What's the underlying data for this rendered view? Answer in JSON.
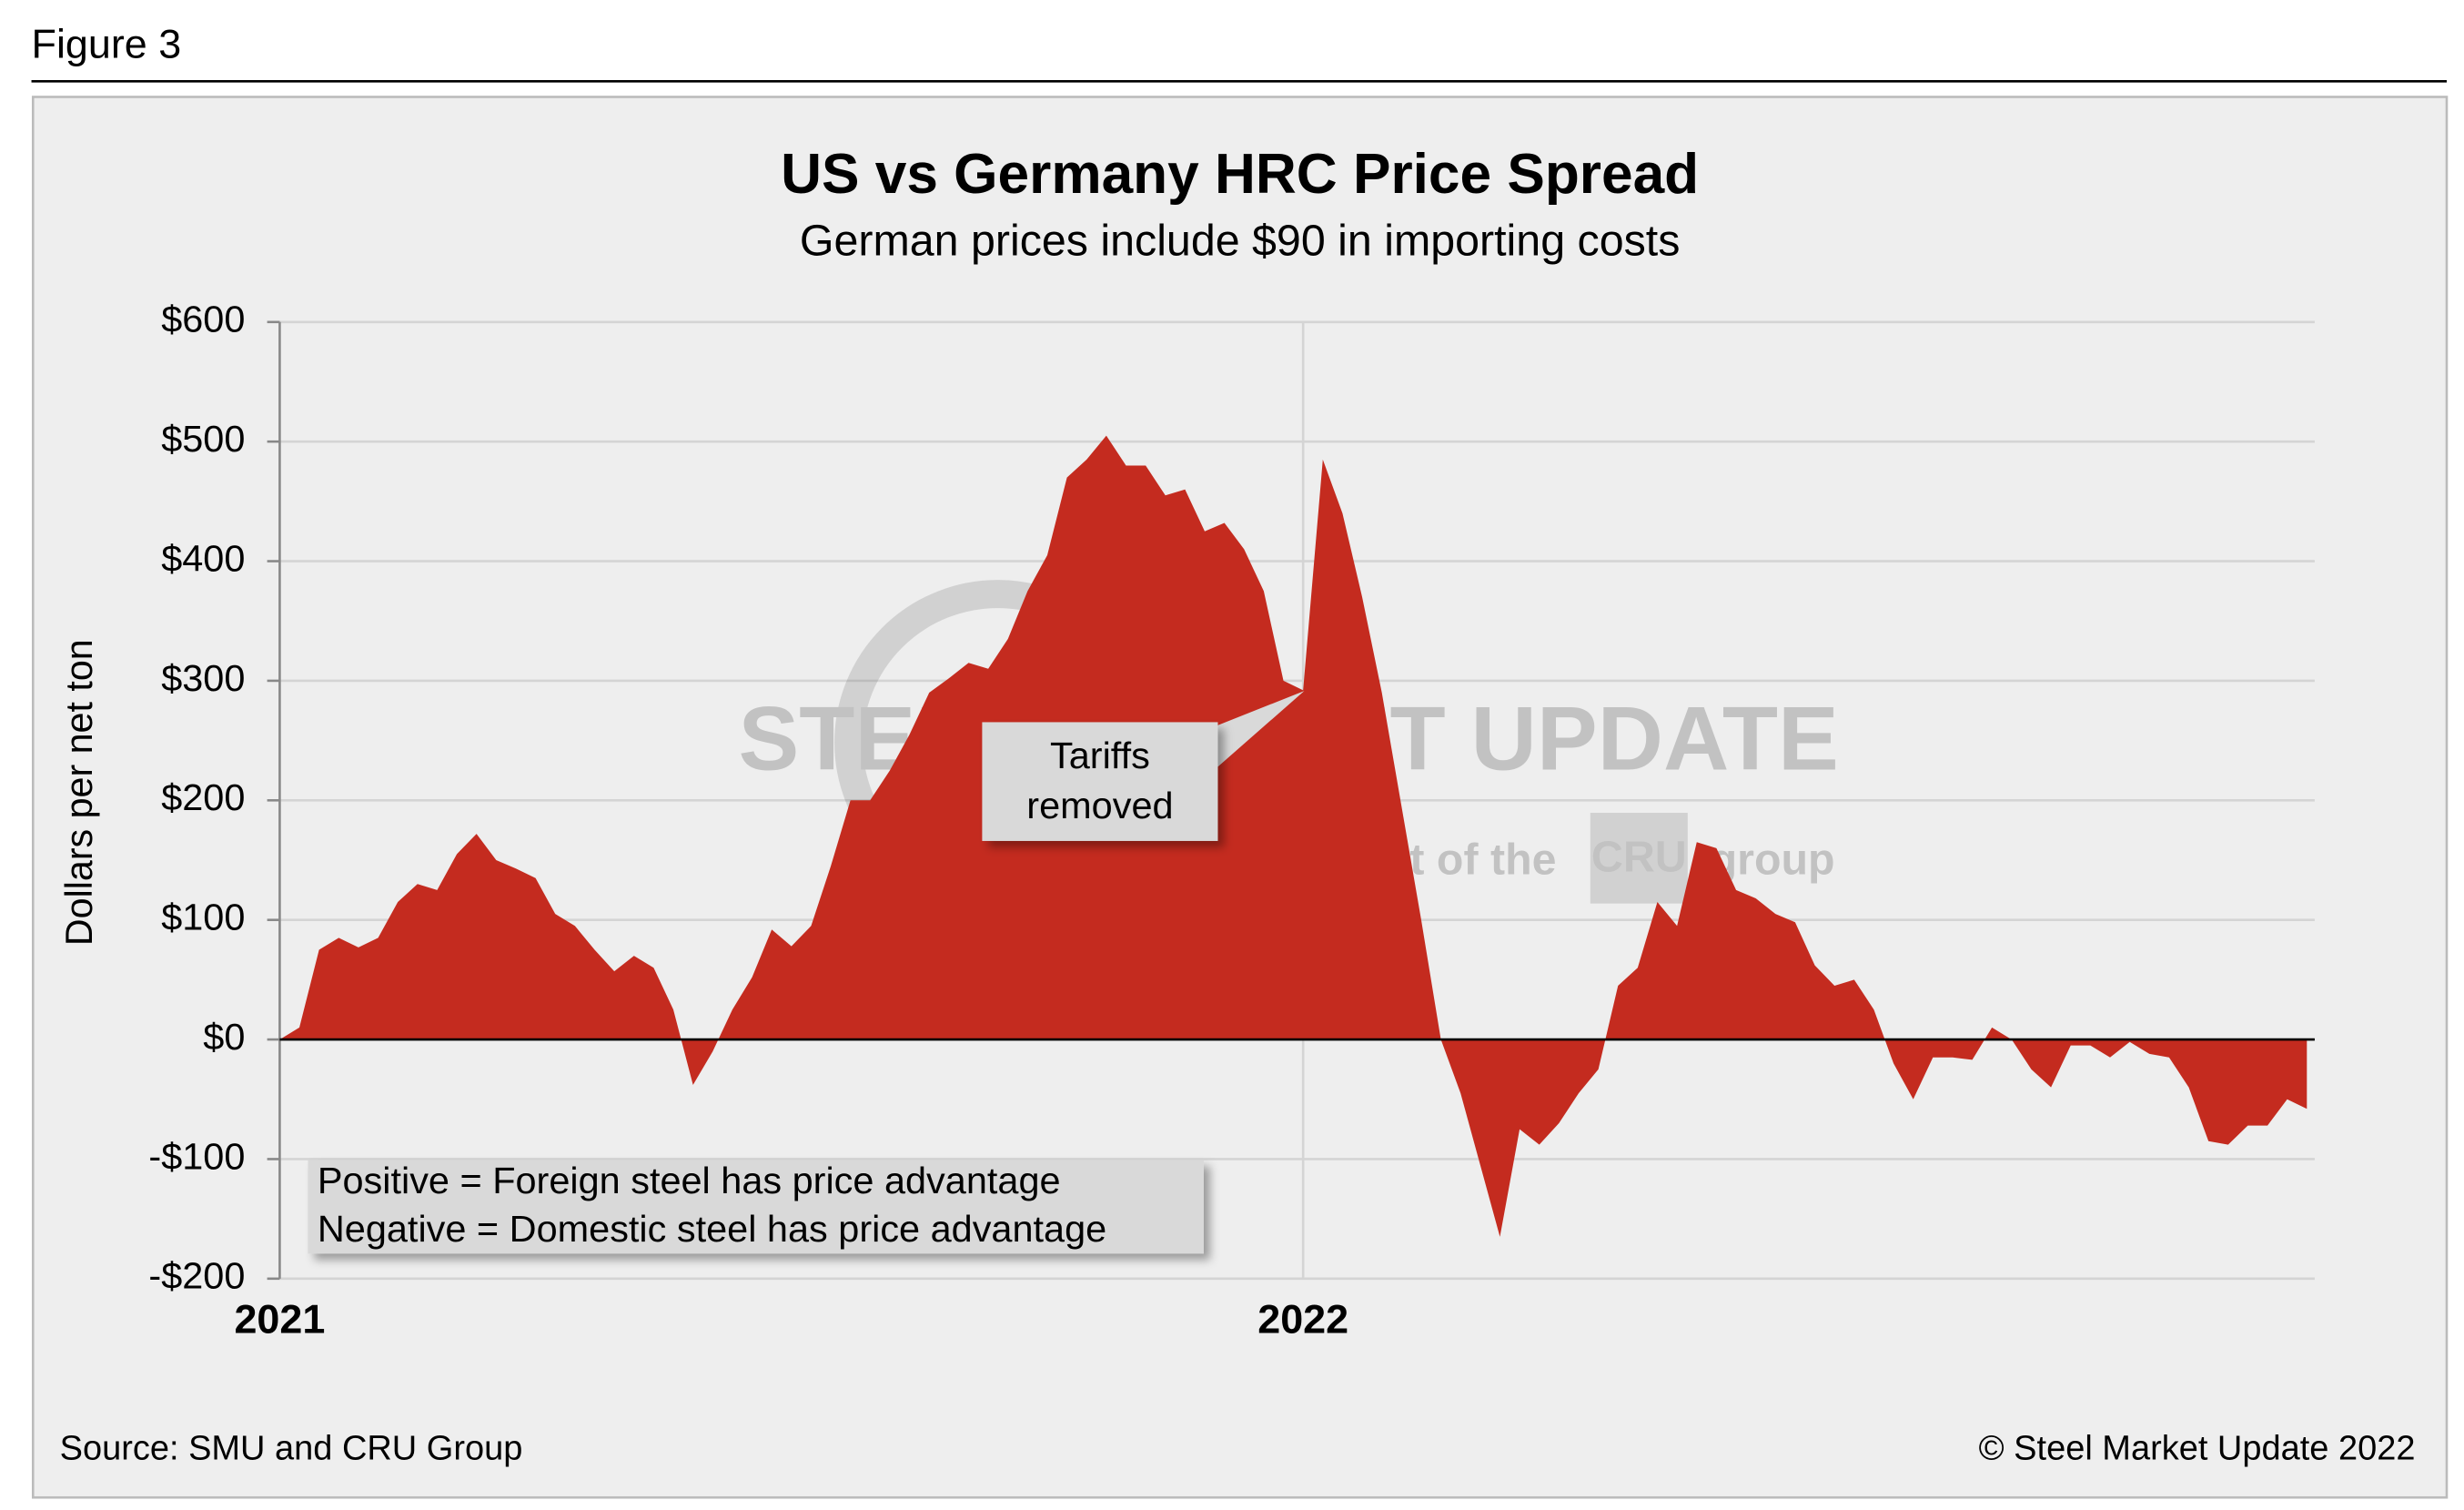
{
  "figure_label": "Figure 3",
  "chart_data": {
    "type": "area",
    "title": "US vs Germany HRC Price Spread",
    "subtitle": "German prices include $90 in importing costs",
    "y_label": "Dollars per net ton",
    "categories": [
      "2021",
      null,
      null,
      null,
      null,
      null,
      null,
      null,
      null,
      null,
      null,
      null,
      null,
      null,
      null,
      null,
      null,
      null,
      null,
      null,
      null,
      null,
      null,
      null,
      null,
      null,
      null,
      null,
      null,
      null,
      null,
      null,
      null,
      null,
      null,
      null,
      null,
      null,
      null,
      null,
      null,
      null,
      null,
      null,
      null,
      null,
      null,
      null,
      null,
      null,
      null,
      null,
      "2022",
      null,
      null,
      null,
      null,
      null,
      null,
      null,
      null,
      null,
      null,
      null,
      null,
      null,
      null,
      null,
      null,
      null,
      null,
      null,
      null,
      null,
      null,
      null,
      null,
      null,
      null,
      null,
      null,
      null,
      null,
      null,
      null,
      null,
      null,
      null,
      null,
      null,
      null,
      null,
      null,
      null,
      null,
      null,
      null,
      null,
      null,
      null,
      null,
      null,
      null,
      null
    ],
    "values": [
      0,
      10,
      75,
      85,
      77,
      85,
      115,
      130,
      125,
      155,
      172,
      150,
      143,
      135,
      105,
      95,
      75,
      57,
      70,
      60,
      25,
      -38,
      -10,
      25,
      52,
      92,
      78,
      95,
      145,
      200,
      200,
      225,
      255,
      290,
      302,
      315,
      310,
      335,
      375,
      405,
      470,
      485,
      505,
      480,
      480,
      455,
      460,
      425,
      432,
      410,
      375,
      300,
      292,
      485,
      440,
      370,
      290,
      195,
      100,
      0,
      -45,
      -105,
      -165,
      -75,
      -88,
      -70,
      -45,
      -25,
      45,
      60,
      115,
      95,
      165,
      160,
      125,
      118,
      105,
      98,
      62,
      45,
      50,
      25,
      -20,
      -50,
      -15,
      -15,
      -17,
      10,
      0,
      -25,
      -40,
      -5,
      -5,
      -15,
      -2,
      -12,
      -15,
      -40,
      -85,
      -88,
      -72,
      -72,
      -50,
      -58
    ],
    "color": "#c42b1f",
    "ylim": [
      -200,
      600
    ],
    "yticks": [
      {
        "value": -200,
        "label": "-$200"
      },
      {
        "value": -100,
        "label": "-$100"
      },
      {
        "value": 0,
        "label": "$0"
      },
      {
        "value": 100,
        "label": "$100"
      },
      {
        "value": 200,
        "label": "$200"
      },
      {
        "value": 300,
        "label": "$300"
      },
      {
        "value": 400,
        "label": "$400"
      },
      {
        "value": 500,
        "label": "$500"
      },
      {
        "value": 600,
        "label": "$600"
      }
    ],
    "grid": true,
    "callout": [
      "Tariffs",
      "removed"
    ],
    "note": [
      "Positive = Foreign steel has price advantage",
      "Negative = Domestic steel has price advantage"
    ],
    "watermark": {
      "brand": "STEEL MARKET UPDATE",
      "prefix": "part of the",
      "logo": "CRU",
      "suffix": "group"
    },
    "source": "Source: SMU and CRU Group",
    "copyright": "© Steel Market Update 2022"
  }
}
